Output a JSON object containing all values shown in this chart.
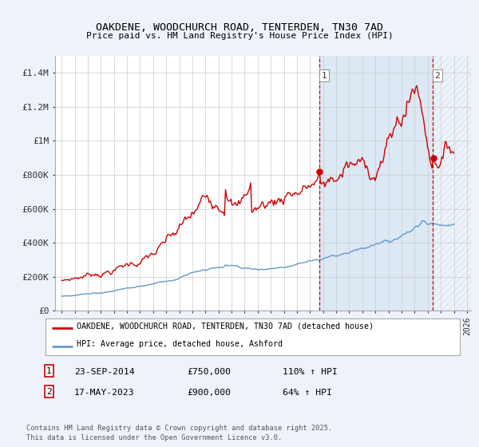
{
  "title": "OAKDENE, WOODCHURCH ROAD, TENTERDEN, TN30 7AD",
  "subtitle": "Price paid vs. HM Land Registry's House Price Index (HPI)",
  "ylim": [
    0,
    1500000
  ],
  "yticks": [
    0,
    200000,
    400000,
    600000,
    800000,
    1000000,
    1200000,
    1400000
  ],
  "ytick_labels": [
    "£0",
    "£200K",
    "£400K",
    "£600K",
    "£800K",
    "£1M",
    "£1.2M",
    "£1.4M"
  ],
  "x_start_year": 1995,
  "x_end_year": 2026,
  "red_color": "#cc0000",
  "blue_color": "#6699cc",
  "marker1_year": 2014.73,
  "marker2_year": 2023.38,
  "marker1_price": 750000,
  "marker2_price": 900000,
  "legend_label_red": "OAKDENE, WOODCHURCH ROAD, TENTERDEN, TN30 7AD (detached house)",
  "legend_label_blue": "HPI: Average price, detached house, Ashford",
  "annotation1_date": "23-SEP-2014",
  "annotation1_price": "£750,000",
  "annotation1_hpi": "110% ↑ HPI",
  "annotation2_date": "17-MAY-2023",
  "annotation2_price": "£900,000",
  "annotation2_hpi": "64% ↑ HPI",
  "footer": "Contains HM Land Registry data © Crown copyright and database right 2025.\nThis data is licensed under the Open Government Licence v3.0.",
  "bg_color": "#eef2fa",
  "plot_bg_color": "#ffffff",
  "shade_color": "#dde8f5",
  "hatch_color": "#dde8f5"
}
